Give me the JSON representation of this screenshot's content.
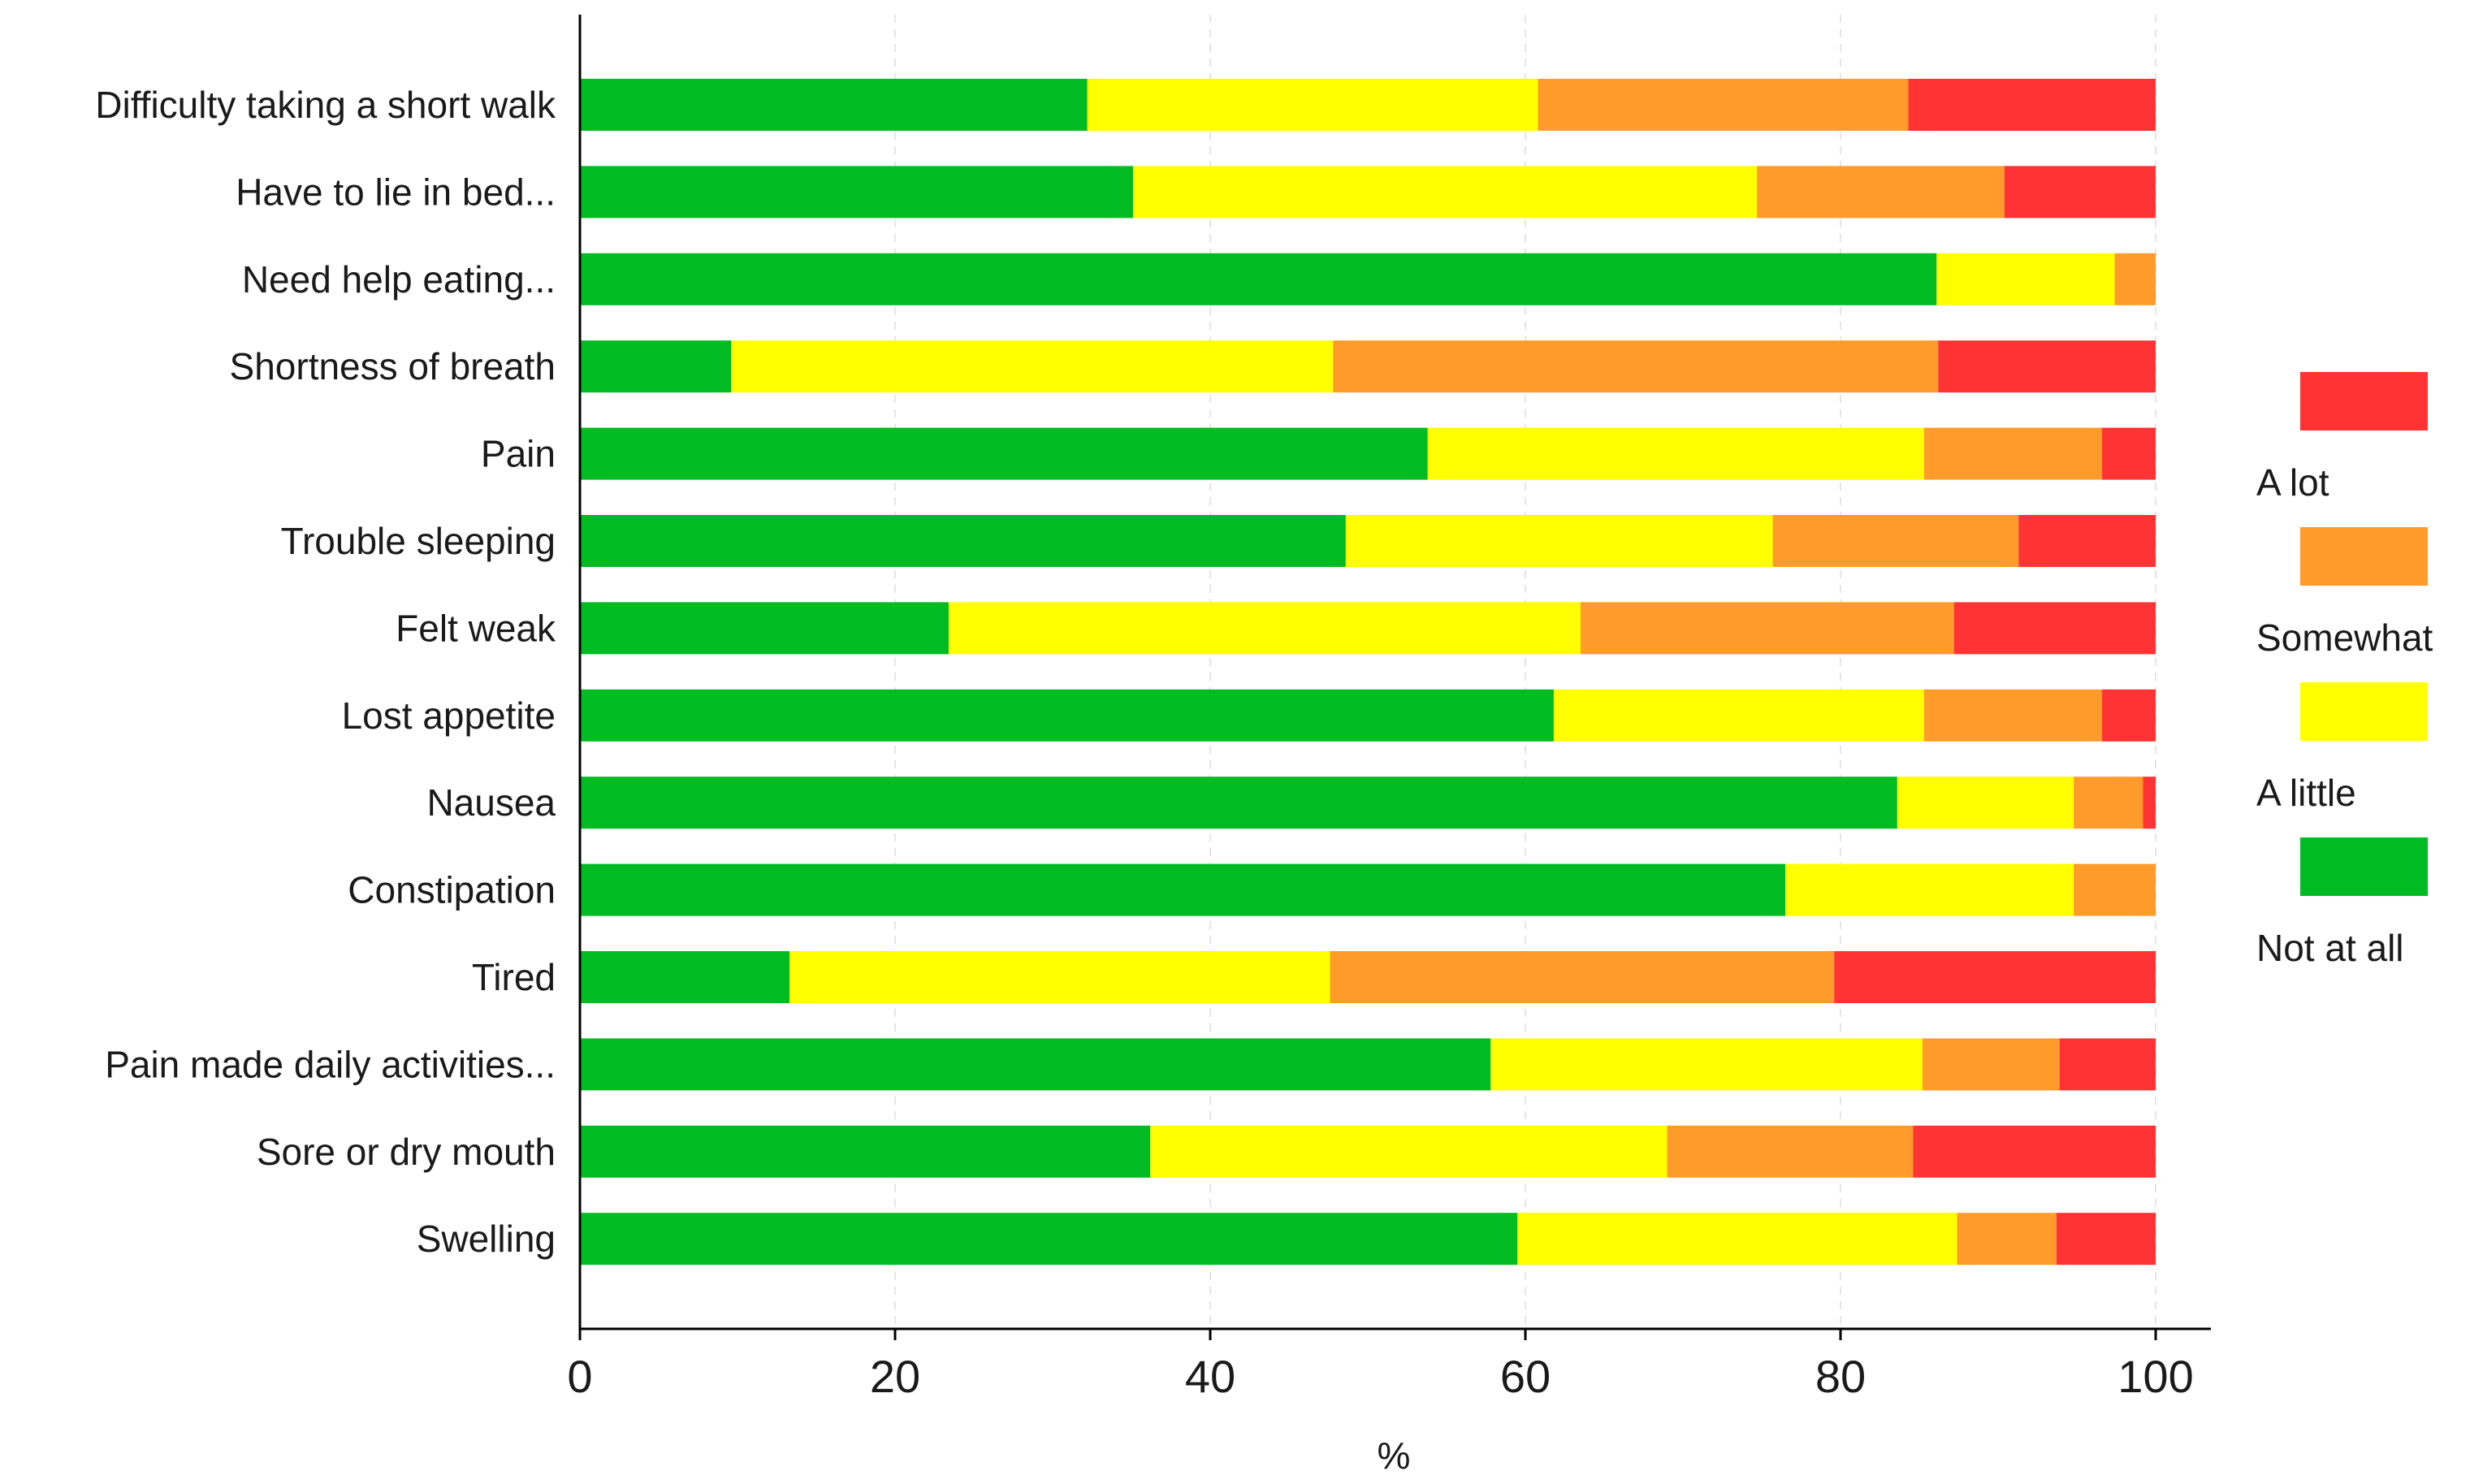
{
  "chart_data": {
    "type": "bar",
    "orientation": "horizontal",
    "stacked": true,
    "title": "",
    "xlabel": "%",
    "ylabel": "",
    "xlim": [
      0,
      100
    ],
    "x_ticks": [
      "0",
      "20",
      "40",
      "60",
      "80",
      "100"
    ],
    "grid": "vertical dashed",
    "legend_position": "right",
    "categories": [
      "Difficulty taking a short walk",
      "Have to lie in bed...",
      "Need help eating...",
      "Shortness of breath",
      "Pain",
      "Trouble sleeping",
      "Felt weak",
      "Lost appetite",
      "Nausea",
      "Constipation",
      "Tired",
      "Pain made daily activities...",
      "Sore or dry mouth",
      "Swelling"
    ],
    "series": [
      {
        "name": "Not at all",
        "color": "#00bb22",
        "values": [
          32.2,
          35.1,
          86.1,
          9.6,
          53.8,
          48.6,
          23.4,
          61.8,
          83.6,
          76.5,
          13.3,
          57.8,
          36.2,
          59.5
        ]
      },
      {
        "name": "A little",
        "color": "#ffff00",
        "values": [
          28.6,
          39.6,
          11.3,
          38.2,
          31.5,
          27.1,
          40.1,
          23.5,
          11.2,
          18.3,
          34.3,
          27.4,
          32.8,
          27.9
        ]
      },
      {
        "name": "Somewhat",
        "color": "#ff9b2b",
        "values": [
          23.5,
          15.7,
          2.6,
          38.4,
          11.3,
          15.6,
          23.7,
          11.3,
          4.4,
          5.2,
          32.0,
          8.7,
          15.6,
          6.3
        ]
      },
      {
        "name": "A lot",
        "color": "#ff3333",
        "values": [
          15.7,
          9.6,
          0.0,
          13.8,
          3.4,
          8.7,
          12.8,
          3.4,
          0.8,
          0.0,
          20.4,
          6.1,
          15.4,
          6.3
        ]
      }
    ],
    "legend": [
      "A lot",
      "Somewhat",
      "A little",
      "Not at all"
    ]
  }
}
